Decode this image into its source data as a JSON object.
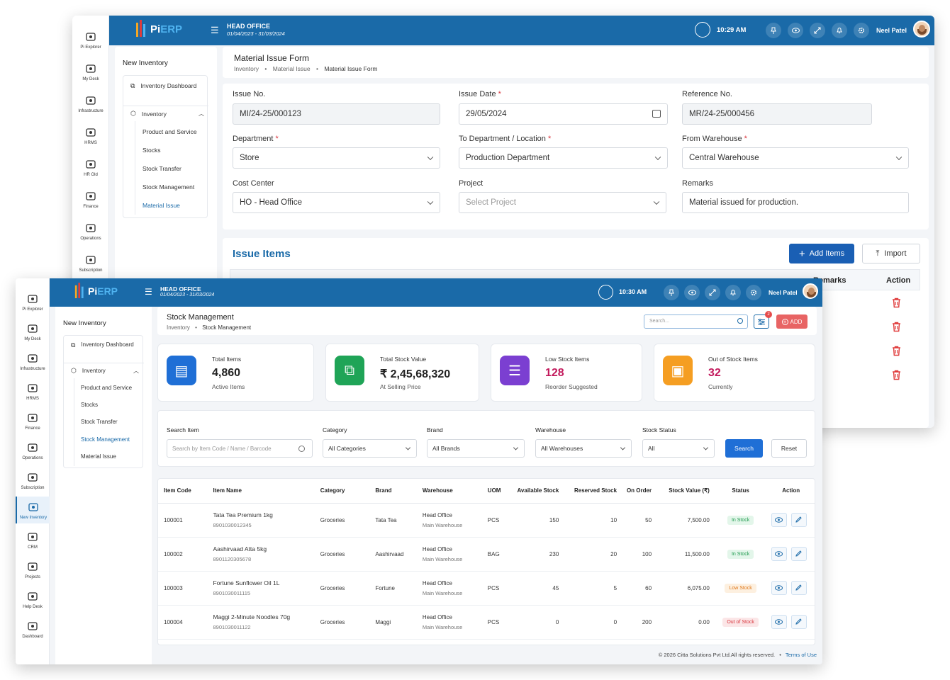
{
  "app": {
    "logo_pi": "Pi",
    "logo_erp": "ERP",
    "office": "HEAD OFFICE",
    "fy": "01/04/2023 - 31/03/2024",
    "user": "Neel Patel"
  },
  "back": {
    "time": "10:29 AM",
    "rail": [
      "Pi Explorer",
      "My Desk",
      "Infrastructure",
      "HRMS",
      "HR Old",
      "Finance",
      "Operations",
      "Subscription"
    ],
    "menu": {
      "title": "New Inventory",
      "dashboard": "Inventory Dashboard",
      "group": "Inventory",
      "items": [
        "Product and Service",
        "Stocks",
        "Stock Transfer",
        "Stock Management",
        "Material Issue"
      ]
    },
    "page_title": "Material Issue Form",
    "breadcrumb": [
      "Inventory",
      "Material Issue",
      "Material Issue Form"
    ],
    "form": {
      "issue_no_label": "Issue No.",
      "issue_no": "MI/24-25/000123",
      "issue_date_label": "Issue Date",
      "issue_date": "29/05/2024",
      "ref_label": "Reference No.",
      "ref": "MR/24-25/000456",
      "dept_label": "Department",
      "dept": "Store",
      "to_dept_label": "To Department / Location",
      "to_dept": "Production Department",
      "from_wh_label": "From Warehouse",
      "from_wh": "Central Warehouse",
      "cost_label": "Cost Center",
      "cost": "HO - Head Office",
      "project_label": "Project",
      "project_ph": "Select Project",
      "remarks_label": "Remarks",
      "remarks": "Material issued for production."
    },
    "issue_items": "Issue Items",
    "add_items": "Add Items",
    "import": "Import",
    "col_remarks": "Remarks",
    "col_action": "Action"
  },
  "front": {
    "time": "10:30 AM",
    "rail": [
      "Pi Explorer",
      "My Desk",
      "Infrastructure",
      "HRMS",
      "Finance",
      "Operations",
      "Subscription",
      "New Inventory",
      "CRM",
      "Projects",
      "Help Desk",
      "Dashboard"
    ],
    "menu": {
      "title": "New Inventory",
      "dashboard": "Inventory Dashboard",
      "group": "Inventory",
      "items": [
        "Product and Service",
        "Stocks",
        "Stock Transfer",
        "Stock Management",
        "Material Issue"
      ]
    },
    "page_title": "Stock Management",
    "breadcrumb": [
      "Inventory",
      "Stock Management"
    ],
    "search_ph": "Search...",
    "filter_count": "2",
    "add": "ADD",
    "stats": [
      {
        "title": "Total Items",
        "value": "4,860",
        "sub": "Active Items",
        "color": "#1f6fd6",
        "vcolor": "#222"
      },
      {
        "title": "Total Stock Value",
        "value": "₹ 2,45,68,320",
        "sub": "At Selling Price",
        "color": "#1fa457",
        "vcolor": "#222"
      },
      {
        "title": "Low Stock Items",
        "value": "128",
        "sub": "Reorder Suggested",
        "color": "#7b3fd1",
        "vcolor": "#c2185b"
      },
      {
        "title": "Out of Stock Items",
        "value": "32",
        "sub": "Currently",
        "color": "#f59e22",
        "vcolor": "#c2185b"
      }
    ],
    "filters": {
      "search_label": "Search Item",
      "search_ph": "Search by Item Code / Name / Barcode",
      "category_label": "Category",
      "category": "All Categories",
      "brand_label": "Brand",
      "brand": "All Brands",
      "warehouse_label": "Warehouse",
      "warehouse": "All Warehouses",
      "status_label": "Stock Status",
      "status": "All",
      "search_btn": "Search",
      "reset_btn": "Reset"
    },
    "columns": [
      "Item Code",
      "Item Name",
      "Category",
      "Brand",
      "Warehouse",
      "UOM",
      "Available Stock",
      "Reserved Stock",
      "On Order",
      "Stock Value (₹)",
      "Status",
      "Action"
    ],
    "rows": [
      {
        "code": "100001",
        "name": "Tata Tea Premium 1kg",
        "barcode": "8901030012345",
        "category": "Groceries",
        "brand": "Tata Tea",
        "wh": "Head Office",
        "wh_sub": "Main Warehouse",
        "uom": "PCS",
        "available": "150",
        "reserved": "10",
        "on_order": "50",
        "value": "7,500.00",
        "status": "In Stock",
        "status_color": "#1f9a4e",
        "status_bg": "#e3f6ea"
      },
      {
        "code": "100002",
        "name": "Aashirvaad Atta 5kg",
        "barcode": "8901120305678",
        "category": "Groceries",
        "brand": "Aashirvaad",
        "wh": "Head Office",
        "wh_sub": "Main Warehouse",
        "uom": "BAG",
        "available": "230",
        "reserved": "20",
        "on_order": "100",
        "value": "11,500.00",
        "status": "In Stock",
        "status_color": "#1f9a4e",
        "status_bg": "#e3f6ea"
      },
      {
        "code": "100003",
        "name": "Fortune Sunflower Oil 1L",
        "barcode": "8901030011115",
        "category": "Groceries",
        "brand": "Fortune",
        "wh": "Head Office",
        "wh_sub": "Main Warehouse",
        "uom": "PCS",
        "available": "45",
        "reserved": "5",
        "on_order": "60",
        "value": "6,075.00",
        "status": "Low Stock",
        "status_color": "#e0781a",
        "status_bg": "#fdf0e0"
      },
      {
        "code": "100004",
        "name": "Maggi 2-Minute Noodles 70g",
        "barcode": "8901030011122",
        "category": "Groceries",
        "brand": "Maggi",
        "wh": "Head Office",
        "wh_sub": "Main Warehouse",
        "uom": "PCS",
        "available": "0",
        "reserved": "0",
        "on_order": "200",
        "value": "0.00",
        "status": "Out of Stock",
        "status_color": "#d9363e",
        "status_bg": "#fbe6e7"
      }
    ],
    "footer": "© 2026 Citta Solutions Pvt Ltd.All rights reserved.",
    "terms": "Terms of Use"
  }
}
